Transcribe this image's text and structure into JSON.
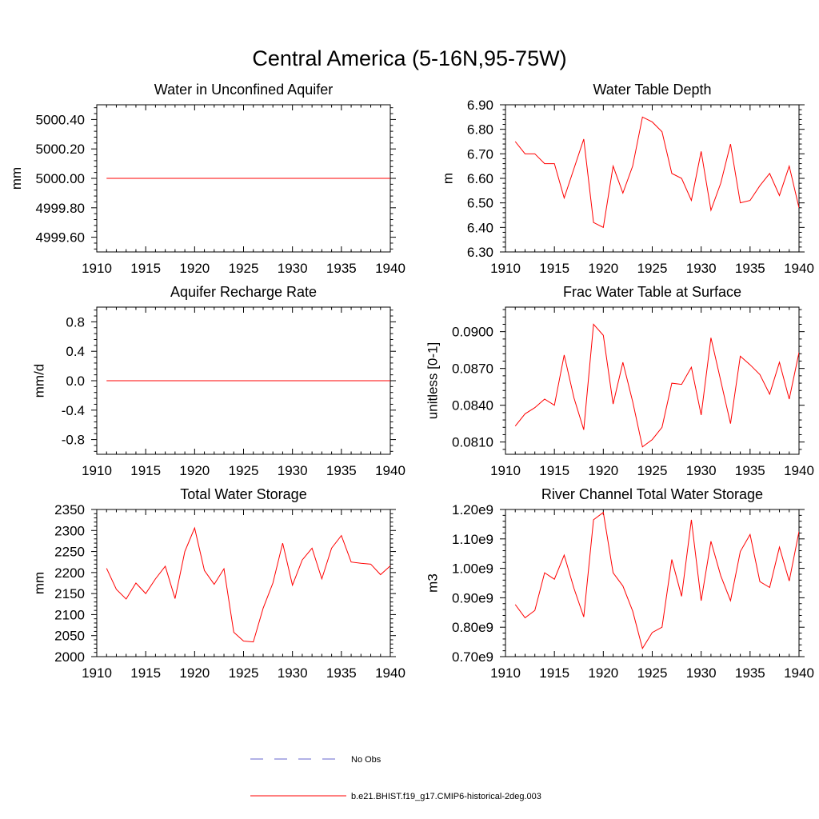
{
  "figure": {
    "title": "Central America (5-16N,95-75W)"
  },
  "legend": [
    {
      "label": "No Obs",
      "color": "#6666cc",
      "dash": "dashed"
    },
    {
      "label": "b.e21.BHIST.f19_g17.CMIP6-historical-2deg.003",
      "color": "#ff0000",
      "dash": "solid"
    }
  ],
  "chart_data": [
    {
      "type": "line",
      "title": "Water in Unconfined Aquifer",
      "xlabel": "",
      "ylabel": "mm",
      "xlim": [
        1910,
        1940
      ],
      "ylim": [
        4999.5,
        5000.5
      ],
      "xticks": [
        1910,
        1915,
        1920,
        1925,
        1930,
        1935,
        1940
      ],
      "yticks": [
        4999.6,
        4999.8,
        5000.0,
        5000.2,
        5000.4
      ],
      "ytick_labels": [
        "4999.60",
        "4999.80",
        "5000.00",
        "5000.20",
        "5000.40"
      ],
      "series": [
        {
          "color": "#ff0000",
          "x": [
            1911,
            1912,
            1913,
            1914,
            1915,
            1916,
            1917,
            1918,
            1919,
            1920,
            1921,
            1922,
            1923,
            1924,
            1925,
            1926,
            1927,
            1928,
            1929,
            1930,
            1931,
            1932,
            1933,
            1934,
            1935,
            1936,
            1937,
            1938,
            1939,
            1940
          ],
          "y": [
            5000,
            5000,
            5000,
            5000,
            5000,
            5000,
            5000,
            5000,
            5000,
            5000,
            5000,
            5000,
            5000,
            5000,
            5000,
            5000,
            5000,
            5000,
            5000,
            5000,
            5000,
            5000,
            5000,
            5000,
            5000,
            5000,
            5000,
            5000,
            5000,
            5000
          ]
        }
      ]
    },
    {
      "type": "line",
      "title": "Water Table Depth",
      "xlabel": "",
      "ylabel": "m",
      "xlim": [
        1910,
        1940
      ],
      "ylim": [
        6.3,
        6.9
      ],
      "xticks": [
        1910,
        1915,
        1920,
        1925,
        1930,
        1935,
        1940
      ],
      "yticks": [
        6.3,
        6.4,
        6.5,
        6.6,
        6.7,
        6.8,
        6.9
      ],
      "ytick_labels": [
        "6.30",
        "6.40",
        "6.50",
        "6.60",
        "6.70",
        "6.80",
        "6.90"
      ],
      "series": [
        {
          "color": "#ff0000",
          "x": [
            1911,
            1912,
            1913,
            1914,
            1915,
            1916,
            1917,
            1918,
            1919,
            1920,
            1921,
            1922,
            1923,
            1924,
            1925,
            1926,
            1927,
            1928,
            1929,
            1930,
            1931,
            1932,
            1933,
            1934,
            1935,
            1936,
            1937,
            1938,
            1939,
            1940
          ],
          "y": [
            6.75,
            6.7,
            6.7,
            6.66,
            6.66,
            6.52,
            6.64,
            6.76,
            6.42,
            6.4,
            6.65,
            6.54,
            6.65,
            6.85,
            6.83,
            6.79,
            6.62,
            6.6,
            6.51,
            6.71,
            6.47,
            6.58,
            6.74,
            6.5,
            6.51,
            6.57,
            6.62,
            6.53,
            6.65,
            6.48
          ]
        }
      ]
    },
    {
      "type": "line",
      "title": "Aquifer Recharge Rate",
      "xlabel": "",
      "ylabel": "mm/d",
      "xlim": [
        1910,
        1940
      ],
      "ylim": [
        -1.0,
        1.0
      ],
      "xticks": [
        1910,
        1915,
        1920,
        1925,
        1930,
        1935,
        1940
      ],
      "yticks": [
        -0.8,
        -0.4,
        0.0,
        0.4,
        0.8
      ],
      "ytick_labels": [
        "-0.8",
        "-0.4",
        "0.0",
        "0.4",
        "0.8"
      ],
      "series": [
        {
          "color": "#ff0000",
          "x": [
            1911,
            1912,
            1913,
            1914,
            1915,
            1916,
            1917,
            1918,
            1919,
            1920,
            1921,
            1922,
            1923,
            1924,
            1925,
            1926,
            1927,
            1928,
            1929,
            1930,
            1931,
            1932,
            1933,
            1934,
            1935,
            1936,
            1937,
            1938,
            1939,
            1940
          ],
          "y": [
            0,
            0,
            0,
            0,
            0,
            0,
            0,
            0,
            0,
            0,
            0,
            0,
            0,
            0,
            0,
            0,
            0,
            0,
            0,
            0,
            0,
            0,
            0,
            0,
            0,
            0,
            0,
            0,
            0,
            0
          ]
        }
      ]
    },
    {
      "type": "line",
      "title": "Frac Water Table at Surface",
      "xlabel": "",
      "ylabel": "unitless [0-1]",
      "xlim": [
        1910,
        1940
      ],
      "ylim": [
        0.08,
        0.092
      ],
      "xticks": [
        1910,
        1915,
        1920,
        1925,
        1930,
        1935,
        1940
      ],
      "yticks": [
        0.081,
        0.084,
        0.087,
        0.09
      ],
      "ytick_labels": [
        "0.0810",
        "0.0840",
        "0.0870",
        "0.0900"
      ],
      "series": [
        {
          "color": "#ff0000",
          "x": [
            1911,
            1912,
            1913,
            1914,
            1915,
            1916,
            1917,
            1918,
            1919,
            1920,
            1921,
            1922,
            1923,
            1924,
            1925,
            1926,
            1927,
            1928,
            1929,
            1930,
            1931,
            1932,
            1933,
            1934,
            1935,
            1936,
            1937,
            1938,
            1939,
            1940
          ],
          "y": [
            0.0823,
            0.0833,
            0.0838,
            0.0845,
            0.084,
            0.0881,
            0.0846,
            0.082,
            0.0906,
            0.0897,
            0.0841,
            0.0875,
            0.0843,
            0.0806,
            0.0812,
            0.0822,
            0.0858,
            0.0857,
            0.0871,
            0.0832,
            0.0895,
            0.086,
            0.0825,
            0.088,
            0.0873,
            0.0865,
            0.0849,
            0.0875,
            0.0845,
            0.0883
          ]
        }
      ]
    },
    {
      "type": "line",
      "title": "Total Water Storage",
      "xlabel": "",
      "ylabel": "mm",
      "xlim": [
        1910,
        1940
      ],
      "ylim": [
        2000,
        2350
      ],
      "xticks": [
        1910,
        1915,
        1920,
        1925,
        1930,
        1935,
        1940
      ],
      "yticks": [
        2000,
        2050,
        2100,
        2150,
        2200,
        2250,
        2300,
        2350
      ],
      "ytick_labels": [
        "2000",
        "2050",
        "2100",
        "2150",
        "2200",
        "2250",
        "2300",
        "2350"
      ],
      "series": [
        {
          "color": "#ff0000",
          "x": [
            1911,
            1912,
            1913,
            1914,
            1915,
            1916,
            1917,
            1918,
            1919,
            1920,
            1921,
            1922,
            1923,
            1924,
            1925,
            1926,
            1927,
            1928,
            1929,
            1930,
            1931,
            1932,
            1933,
            1934,
            1935,
            1936,
            1937,
            1938,
            1939,
            1940
          ],
          "y": [
            2210,
            2160,
            2137,
            2175,
            2150,
            2185,
            2215,
            2138,
            2250,
            2306,
            2205,
            2172,
            2209,
            2058,
            2037,
            2035,
            2115,
            2175,
            2270,
            2170,
            2230,
            2258,
            2185,
            2258,
            2288,
            2225,
            2222,
            2220,
            2195,
            2216
          ]
        }
      ]
    },
    {
      "type": "line",
      "title": "River Channel Total Water Storage",
      "xlabel": "",
      "ylabel": "m3",
      "xlim": [
        1910,
        1940
      ],
      "ylim": [
        700000000.0,
        1200000000.0
      ],
      "xticks": [
        1910,
        1915,
        1920,
        1925,
        1930,
        1935,
        1940
      ],
      "yticks": [
        700000000.0,
        800000000.0,
        900000000.0,
        1000000000.0,
        1100000000.0,
        1200000000.0
      ],
      "ytick_labels": [
        "0.70e9",
        "0.80e9",
        "0.90e9",
        "1.00e9",
        "1.10e9",
        "1.20e9"
      ],
      "series": [
        {
          "color": "#ff0000",
          "x": [
            1911,
            1912,
            1913,
            1914,
            1915,
            1916,
            1917,
            1918,
            1919,
            1920,
            1921,
            1922,
            1923,
            1924,
            1925,
            1926,
            1927,
            1928,
            1929,
            1930,
            1931,
            1932,
            1933,
            1934,
            1935,
            1936,
            1937,
            1938,
            1939,
            1940
          ],
          "y": [
            877000000.0,
            832000000.0,
            857000000.0,
            985000000.0,
            963000000.0,
            1045000000.0,
            932000000.0,
            835000000.0,
            1165000000.0,
            1190000000.0,
            985000000.0,
            940000000.0,
            855000000.0,
            728000000.0,
            782000000.0,
            800000000.0,
            1030000000.0,
            905000000.0,
            1165000000.0,
            890000000.0,
            1092000000.0,
            975000000.0,
            890000000.0,
            1057000000.0,
            1115000000.0,
            955000000.0,
            935000000.0,
            1072000000.0,
            957000000.0,
            1125000000.0
          ]
        }
      ]
    }
  ]
}
